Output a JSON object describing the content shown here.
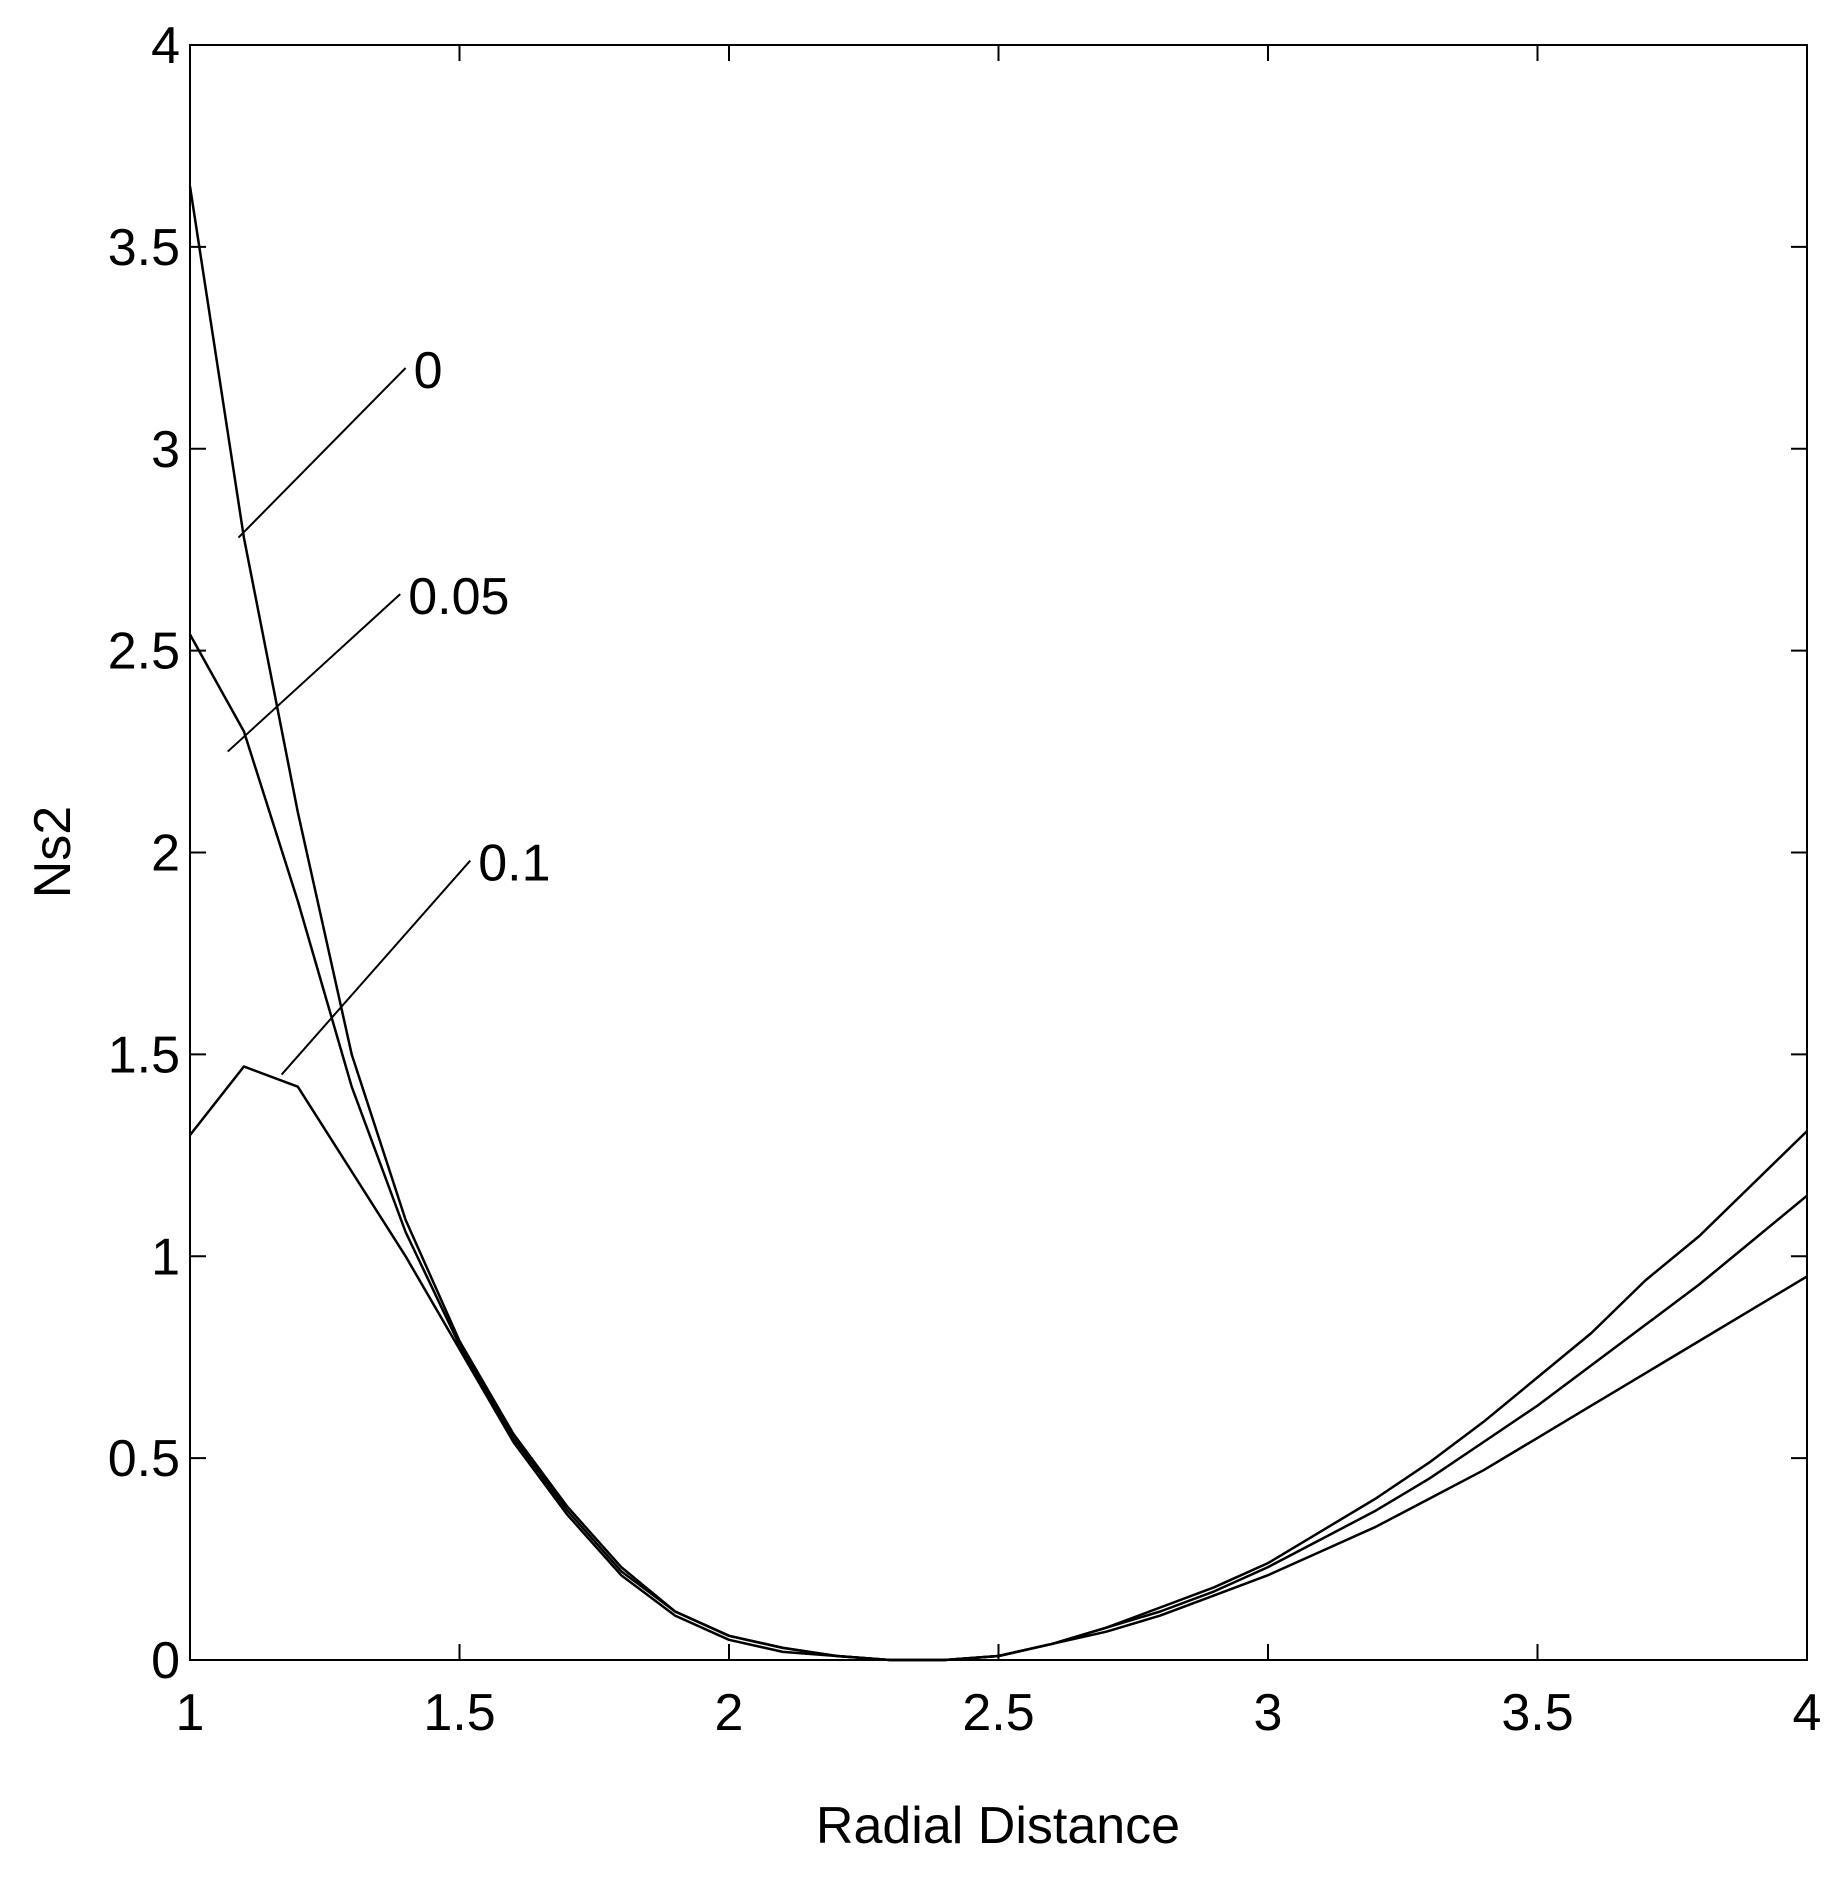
{
  "chart_data": {
    "type": "line",
    "xlabel": "Radial Distance",
    "ylabel": "Ns2",
    "xlim": [
      1,
      4
    ],
    "ylim": [
      0,
      4
    ],
    "grid": false,
    "legend": "none",
    "line_color": "#000000",
    "x_ticks": [
      {
        "value": 1,
        "label": "1"
      },
      {
        "value": 1.5,
        "label": "1.5"
      },
      {
        "value": 2,
        "label": "2"
      },
      {
        "value": 2.5,
        "label": "2.5"
      },
      {
        "value": 3,
        "label": "3"
      },
      {
        "value": 3.5,
        "label": "3.5"
      },
      {
        "value": 4,
        "label": "4"
      }
    ],
    "y_ticks": [
      {
        "value": 0,
        "label": "0"
      },
      {
        "value": 0.5,
        "label": "0.5"
      },
      {
        "value": 1,
        "label": "1"
      },
      {
        "value": 1.5,
        "label": "1.5"
      },
      {
        "value": 2,
        "label": "2"
      },
      {
        "value": 2.5,
        "label": "2.5"
      },
      {
        "value": 3,
        "label": "3"
      },
      {
        "value": 3.5,
        "label": "3.5"
      },
      {
        "value": 4,
        "label": "4"
      }
    ],
    "x": [
      1.0,
      1.1,
      1.2,
      1.3,
      1.4,
      1.5,
      1.6,
      1.7,
      1.8,
      1.9,
      2.0,
      2.1,
      2.2,
      2.3,
      2.4,
      2.5,
      2.6,
      2.7,
      2.8,
      2.9,
      3.0,
      3.1,
      3.2,
      3.3,
      3.4,
      3.5,
      3.6,
      3.7,
      3.8,
      3.9,
      4.0
    ],
    "series": [
      {
        "name": "0",
        "values": [
          3.65,
          2.78,
          2.1,
          1.5,
          1.09,
          0.79,
          0.56,
          0.38,
          0.23,
          0.12,
          0.06,
          0.03,
          0.01,
          0.0,
          0.0,
          0.01,
          0.04,
          0.08,
          0.13,
          0.18,
          0.24,
          0.32,
          0.4,
          0.49,
          0.59,
          0.7,
          0.81,
          0.94,
          1.05,
          1.18,
          1.31
        ]
      },
      {
        "name": "0.05",
        "values": [
          2.54,
          2.3,
          1.88,
          1.42,
          1.06,
          0.78,
          0.55,
          0.37,
          0.22,
          0.12,
          0.06,
          0.03,
          0.01,
          0.0,
          0.0,
          0.01,
          0.04,
          0.08,
          0.12,
          0.17,
          0.23,
          0.3,
          0.37,
          0.45,
          0.54,
          0.63,
          0.73,
          0.83,
          0.93,
          1.04,
          1.15
        ]
      },
      {
        "name": "0.1",
        "values": [
          1.3,
          1.47,
          1.42,
          1.21,
          1.0,
          0.77,
          0.54,
          0.36,
          0.21,
          0.11,
          0.05,
          0.02,
          0.01,
          0.0,
          0.0,
          0.01,
          0.04,
          0.07,
          0.11,
          0.16,
          0.21,
          0.27,
          0.33,
          0.4,
          0.47,
          0.55,
          0.63,
          0.71,
          0.79,
          0.87,
          0.95
        ]
      }
    ],
    "annotations": [
      {
        "text": "0",
        "series": "0",
        "target": [
          1.09,
          2.78
        ],
        "text_anchor": [
          1.4,
          3.2
        ]
      },
      {
        "text": "0.05",
        "series": "0.05",
        "target": [
          1.07,
          2.25
        ],
        "text_anchor": [
          1.39,
          2.64
        ]
      },
      {
        "text": "0.1",
        "series": "0.1",
        "target": [
          1.17,
          1.45
        ],
        "text_anchor": [
          1.52,
          1.98
        ]
      }
    ]
  }
}
